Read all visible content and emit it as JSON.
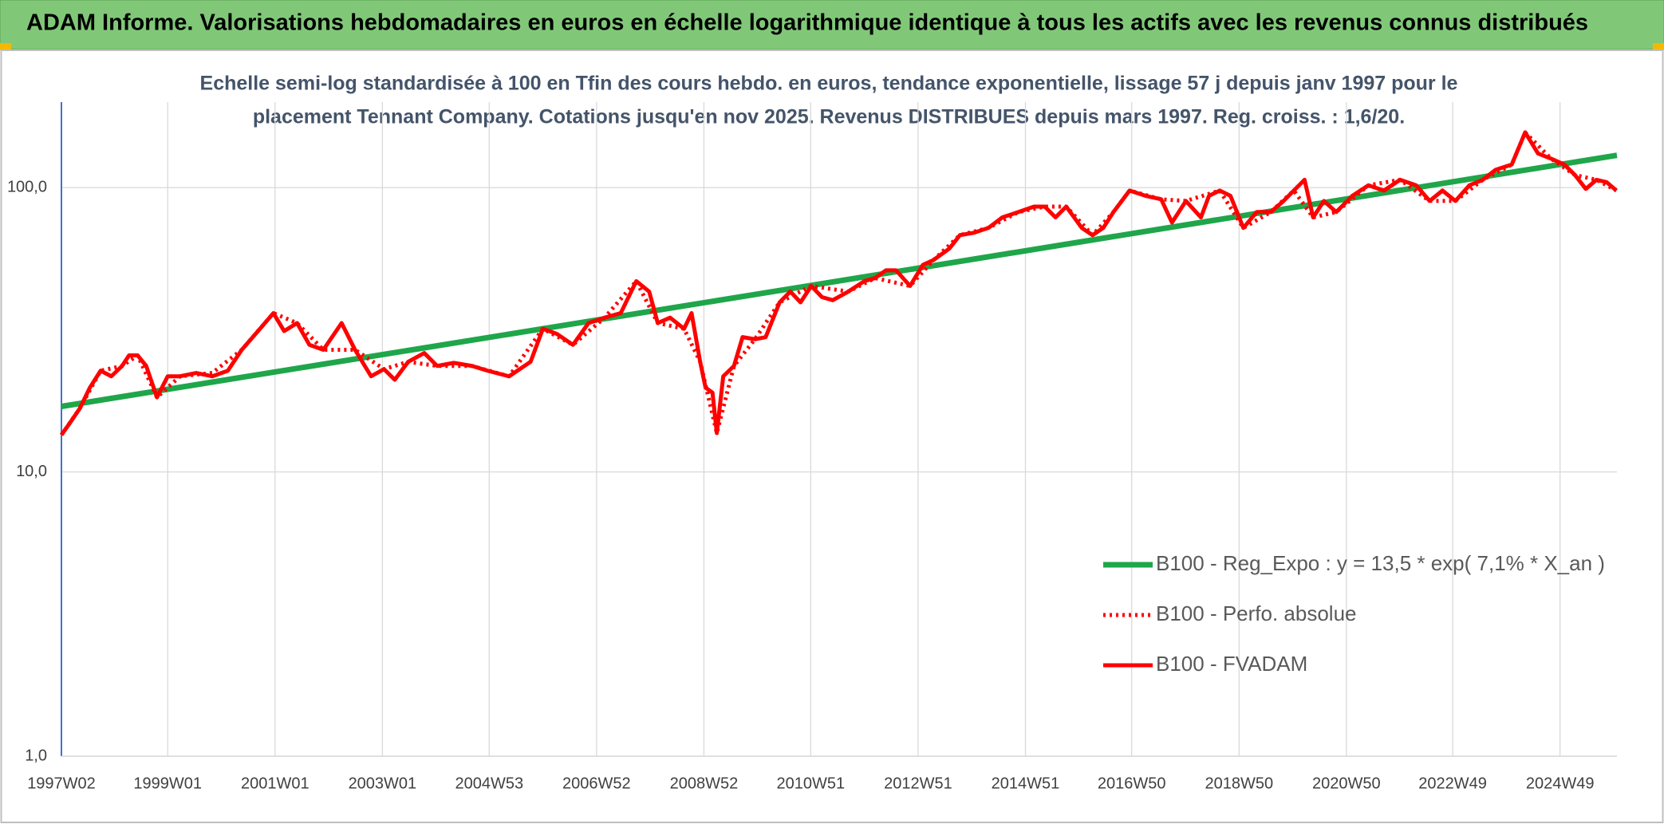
{
  "chart_data": {
    "type": "line",
    "title": "ADAM Informe. Valorisations hebdomadaires en euros en échelle logarithmique identique à tous les actifs avec les revenus connus distribués",
    "subtitle": [
      "Echelle semi-log standardisée à 100 en Tfin des cours hebdo. en euros, tendance exponentielle, lissage 57 j depuis janv 1997 pour le",
      "placement Tennant Company. Cotations jusqu'en nov 2025. Revenus DISTRIBUES depuis mars 1997. Reg. croiss. : 1,6/20."
    ],
    "log_scale": true,
    "grid": true,
    "legend": "bottom-right",
    "xlim": [
      1997.02,
      2026.0
    ],
    "xticks": [
      {
        "value": 1997.02,
        "label": "1997W02"
      },
      {
        "value": 1999.0,
        "label": "1999W01"
      },
      {
        "value": 2001.0,
        "label": "2001W01"
      },
      {
        "value": 2003.0,
        "label": "2003W01"
      },
      {
        "value": 2004.99,
        "label": "2004W53"
      },
      {
        "value": 2006.99,
        "label": "2006W52"
      },
      {
        "value": 2008.99,
        "label": "2008W52"
      },
      {
        "value": 2010.98,
        "label": "2010W51"
      },
      {
        "value": 2012.98,
        "label": "2012W51"
      },
      {
        "value": 2014.98,
        "label": "2014W51"
      },
      {
        "value": 2016.96,
        "label": "2016W50"
      },
      {
        "value": 2018.96,
        "label": "2018W50"
      },
      {
        "value": 2020.96,
        "label": "2020W50"
      },
      {
        "value": 2022.94,
        "label": "2022W49"
      },
      {
        "value": 2024.94,
        "label": "2024W49"
      }
    ],
    "ylim": [
      1,
      200
    ],
    "yticks": [
      {
        "value": 1,
        "label": "1,0"
      },
      {
        "value": 10,
        "label": "10,0"
      },
      {
        "value": 100,
        "label": "100,0"
      }
    ],
    "series": [
      {
        "name": "B100 - Reg_Expo : y = 13,5 * exp( 7,1% *  X_an )",
        "color": "#1fa64a",
        "line_style": "solid",
        "x": [
          1997.02,
          2026.0
        ],
        "values": [
          17,
          130
        ]
      },
      {
        "name": "B100 - Perfo. absolue",
        "color": "#ff0000",
        "line_style": "dotted",
        "x": [
          1997.02,
          1997.36,
          1997.75,
          1998.15,
          1998.44,
          1998.8,
          1999.23,
          1999.83,
          2000.38,
          2000.97,
          2001.41,
          2001.9,
          2002.49,
          2003.03,
          2003.48,
          2004.02,
          2004.67,
          2005.36,
          2005.99,
          2006.55,
          2007.14,
          2007.73,
          2008.13,
          2008.62,
          2008.92,
          2009.23,
          2009.55,
          2009.94,
          2010.4,
          2010.99,
          2011.68,
          2012.18,
          2012.83,
          2013.27,
          2013.76,
          2014.29,
          2014.85,
          2015.34,
          2015.74,
          2016.23,
          2016.62,
          2016.92,
          2017.51,
          2017.97,
          2018.6,
          2019.04,
          2019.55,
          2019.98,
          2020.34,
          2020.77,
          2021.37,
          2021.96,
          2022.51,
          2022.99,
          2023.5,
          2024.04,
          2024.29,
          2024.77,
          2025.22,
          2025.62,
          2025.99
        ],
        "values": [
          13.5,
          16.7,
          22.7,
          23.6,
          25.7,
          18.3,
          21.7,
          22.3,
          26.9,
          36.2,
          33.4,
          26.9,
          26.9,
          23.0,
          24.4,
          23.6,
          23.6,
          21.7,
          31.9,
          28.0,
          34.9,
          46.9,
          33.4,
          31.9,
          24.4,
          13.7,
          23.6,
          29.3,
          39.5,
          45.1,
          43.1,
          48.1,
          45.1,
          55.7,
          68.1,
          72.2,
          82.1,
          85.8,
          85.8,
          68.1,
          82.1,
          97.7,
          91.0,
          89.8,
          97.7,
          72.2,
          82.1,
          97.7,
          78.6,
          82.1,
          101.9,
          106.6,
          89.8,
          89.8,
          106.6,
          120.6,
          156.5,
          126.6,
          110.7,
          106.6,
          97.7
        ]
      },
      {
        "name": "B100 - FVADAM",
        "color": "#ff0000",
        "line_style": "solid",
        "x": [
          1997.02,
          1997.16,
          1997.36,
          1997.55,
          1997.75,
          1997.95,
          1998.15,
          1998.28,
          1998.44,
          1998.6,
          1998.8,
          1999.0,
          1999.23,
          1999.53,
          1999.83,
          2000.12,
          2000.38,
          2000.72,
          2000.97,
          2001.17,
          2001.41,
          2001.64,
          2001.9,
          2002.24,
          2002.49,
          2002.79,
          2003.03,
          2003.23,
          2003.48,
          2003.78,
          2004.02,
          2004.33,
          2004.67,
          2004.96,
          2005.36,
          2005.76,
          2005.99,
          2006.25,
          2006.55,
          2006.84,
          2007.14,
          2007.44,
          2007.73,
          2007.97,
          2008.13,
          2008.36,
          2008.62,
          2008.76,
          2008.92,
          2009.02,
          2009.15,
          2009.23,
          2009.35,
          2009.55,
          2009.71,
          2009.94,
          2010.14,
          2010.4,
          2010.6,
          2010.79,
          2010.99,
          2011.19,
          2011.39,
          2011.68,
          2011.98,
          2012.18,
          2012.38,
          2012.57,
          2012.83,
          2013.07,
          2013.27,
          2013.56,
          2013.76,
          2014.02,
          2014.29,
          2014.55,
          2014.85,
          2015.14,
          2015.34,
          2015.54,
          2015.74,
          2016.03,
          2016.23,
          2016.43,
          2016.62,
          2016.92,
          2017.22,
          2017.51,
          2017.71,
          2017.97,
          2018.25,
          2018.4,
          2018.6,
          2018.8,
          2019.04,
          2019.29,
          2019.55,
          2019.79,
          2019.98,
          2020.18,
          2020.34,
          2020.54,
          2020.77,
          2021.07,
          2021.37,
          2021.66,
          2021.96,
          2022.26,
          2022.51,
          2022.75,
          2022.99,
          2023.25,
          2023.5,
          2023.74,
          2024.04,
          2024.29,
          2024.53,
          2024.77,
          2025.02,
          2025.22,
          2025.42,
          2025.62,
          2025.81,
          2025.99
        ],
        "values": [
          13.5,
          14.7,
          16.7,
          19.8,
          22.7,
          21.7,
          23.6,
          25.7,
          25.7,
          23.6,
          18.3,
          21.7,
          21.7,
          22.3,
          21.7,
          22.7,
          26.9,
          31.9,
          36.2,
          31.3,
          33.4,
          28.0,
          26.9,
          33.4,
          26.9,
          21.7,
          23.0,
          21.1,
          24.4,
          26.2,
          23.6,
          24.2,
          23.6,
          22.7,
          21.7,
          24.4,
          31.9,
          30.6,
          28.0,
          33.4,
          34.9,
          36.2,
          46.9,
          43.1,
          33.4,
          34.9,
          31.9,
          36.2,
          24.4,
          19.8,
          19.0,
          13.7,
          21.7,
          23.6,
          29.8,
          29.3,
          29.8,
          39.5,
          43.1,
          39.5,
          45.1,
          41.2,
          40.2,
          43.1,
          46.9,
          48.1,
          51.2,
          51.2,
          45.1,
          53.5,
          55.7,
          61.0,
          68.1,
          69.4,
          72.2,
          78.6,
          82.1,
          85.8,
          85.8,
          78.6,
          85.8,
          72.2,
          68.1,
          72.2,
          82.1,
          97.7,
          93.6,
          91.0,
          75.4,
          89.8,
          78.6,
          93.6,
          97.7,
          93.6,
          72.2,
          82.1,
          82.1,
          89.8,
          97.7,
          106.6,
          78.6,
          89.8,
          82.1,
          93.6,
          101.9,
          97.7,
          106.6,
          101.9,
          89.8,
          97.7,
          89.8,
          101.9,
          106.6,
          115.6,
          120.6,
          156.5,
          131.9,
          126.6,
          120.6,
          110.7,
          99.0,
          106.6,
          104.5,
          97.7
        ]
      }
    ]
  }
}
